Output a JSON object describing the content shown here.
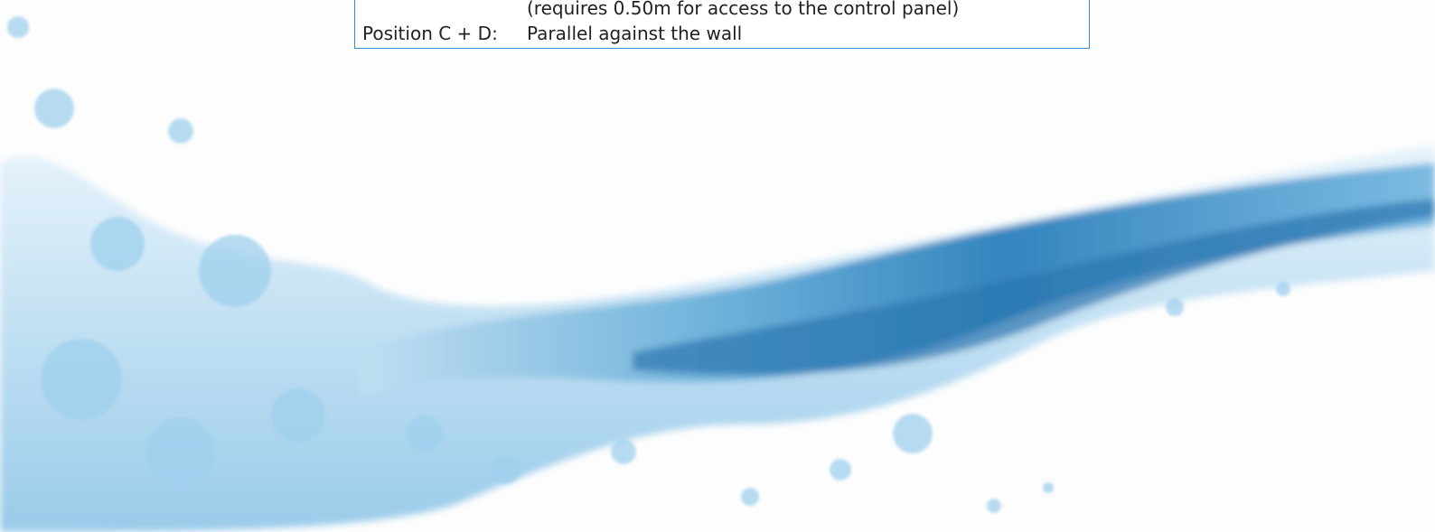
{
  "info_box": {
    "rows": [
      {
        "text": "(requires 0.50m for access to the control panel)"
      },
      {
        "label": "Position C + D:",
        "text": "Parallel against the wall"
      }
    ]
  }
}
